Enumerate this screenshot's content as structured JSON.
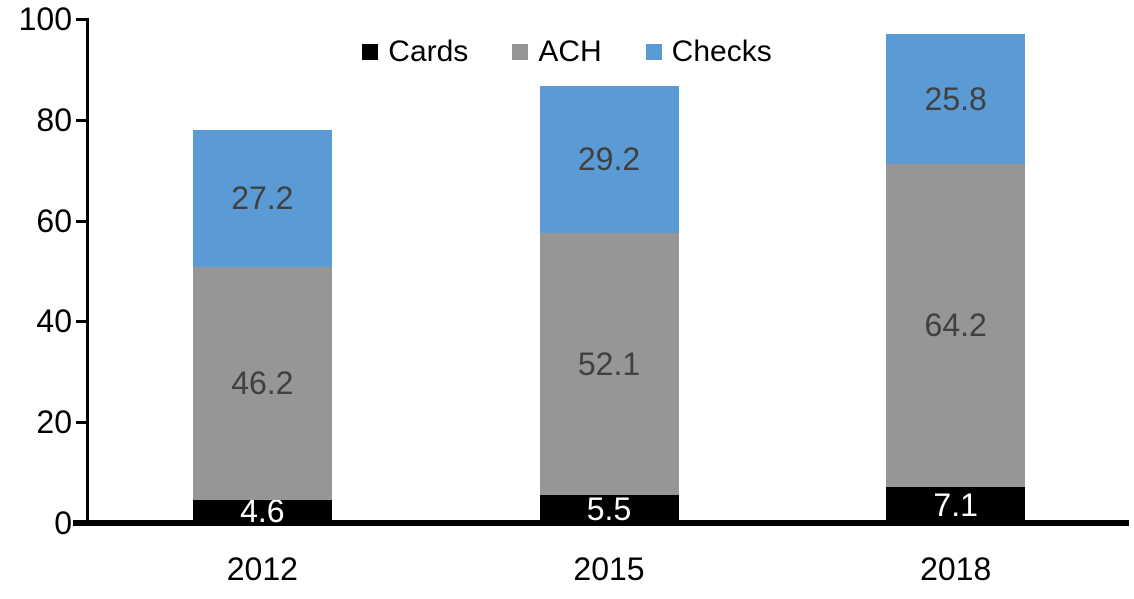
{
  "chart_data": {
    "type": "bar",
    "stacked": true,
    "title": "",
    "xlabel": "",
    "ylabel": "",
    "categories": [
      "2012",
      "2015",
      "2018"
    ],
    "series": [
      {
        "name": "Cards",
        "color": "#000000",
        "label_color": "#ffffff",
        "values": [
          4.6,
          5.5,
          7.1
        ],
        "value_labels": [
          "4.6",
          "5.5",
          "7.1"
        ]
      },
      {
        "name": "ACH",
        "color": "#969696",
        "label_color": "#404040",
        "values": [
          46.2,
          52.1,
          64.2
        ],
        "value_labels": [
          "46.2",
          "52.1",
          "64.2"
        ]
      },
      {
        "name": "Checks",
        "color": "#5b9bd5",
        "label_color": "#404040",
        "values": [
          27.2,
          29.2,
          25.8
        ],
        "value_labels": [
          "27.2",
          "29.2",
          "25.8"
        ]
      }
    ],
    "ylim": [
      0,
      100
    ],
    "y_ticks": [
      0,
      20,
      40,
      60,
      80,
      100
    ],
    "y_tick_labels": [
      "0",
      "20",
      "40",
      "60",
      "80",
      "100"
    ],
    "grid": false,
    "legend_position": "top",
    "axis_color": "#000000",
    "background_color": "#ffffff"
  }
}
